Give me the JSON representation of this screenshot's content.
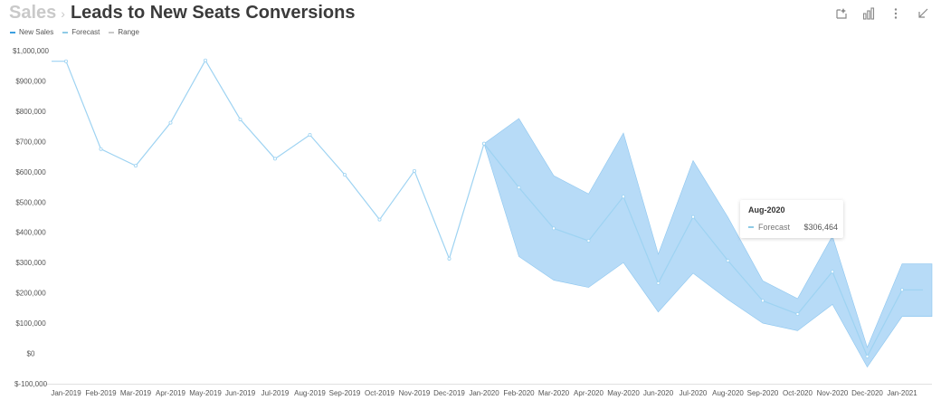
{
  "header": {
    "breadcrumb": "Sales",
    "title": "Leads to New Seats Conversions"
  },
  "toolbar": [
    {
      "name": "annotate-icon"
    },
    {
      "name": "chart-type-icon"
    },
    {
      "name": "more-icon"
    },
    {
      "name": "collapse-icon"
    }
  ],
  "legend": [
    {
      "label": "New Sales",
      "color": "#3b9fe0"
    },
    {
      "label": "Forecast",
      "color": "#8fcbe6"
    },
    {
      "label": "Range",
      "color": "#c9c9c9"
    }
  ],
  "tooltip": {
    "title": "Aug-2020",
    "series": "Forecast",
    "value": "$306,464"
  },
  "colors": {
    "line": "#9ed3f2",
    "band": "#b7dbf7",
    "band_edge": "#8dc6ef",
    "axis_text": "#555555",
    "axis_line": "#e0e0e0"
  },
  "chart_data": {
    "type": "line",
    "categories": [
      "Jan-2019",
      "Feb-2019",
      "Mar-2019",
      "Apr-2019",
      "May-2019",
      "Jun-2019",
      "Jul-2019",
      "Aug-2019",
      "Sep-2019",
      "Oct-2019",
      "Nov-2019",
      "Dec-2019",
      "Jan-2020",
      "Feb-2020",
      "Mar-2020",
      "Apr-2020",
      "May-2020",
      "Jun-2020",
      "Jul-2020",
      "Aug-2020",
      "Sep-2020",
      "Oct-2020",
      "Nov-2020",
      "Dec-2020",
      "Jan-2021"
    ],
    "y_ticks": [
      "$1,000,000",
      "$900,000",
      "$800,000",
      "$700,000",
      "$600,000",
      "$500,000",
      "$400,000",
      "$300,000",
      "$200,000",
      "$100,000",
      "$0",
      "$-100,000"
    ],
    "ylim": [
      -100000,
      1000000
    ],
    "series": [
      {
        "name": "New Sales",
        "values": [
          965000,
          675000,
          620000,
          762000,
          968000,
          773000,
          643000,
          722000,
          590000,
          442000,
          603000,
          313000,
          693000,
          null,
          null,
          null,
          null,
          null,
          null,
          null,
          null,
          null,
          null,
          null,
          null
        ]
      },
      {
        "name": "Forecast",
        "values": [
          null,
          null,
          null,
          null,
          null,
          null,
          null,
          null,
          null,
          null,
          null,
          null,
          693000,
          548000,
          413000,
          372000,
          518000,
          232000,
          451000,
          306464,
          174000,
          130000,
          270000,
          -10000,
          210000
        ]
      }
    ],
    "range": {
      "name": "Range",
      "upper": [
        null,
        null,
        null,
        null,
        null,
        null,
        null,
        null,
        null,
        null,
        null,
        null,
        693000,
        776000,
        587000,
        527000,
        728000,
        328000,
        637000,
        450000,
        240000,
        181000,
        388000,
        20000,
        296000
      ],
      "lower": [
        null,
        null,
        null,
        null,
        null,
        null,
        null,
        null,
        null,
        null,
        null,
        null,
        693000,
        320000,
        242000,
        218000,
        300000,
        137000,
        265000,
        178000,
        100000,
        75000,
        162000,
        -45000,
        122000
      ]
    },
    "grid": false,
    "legend_position": "top-left"
  }
}
